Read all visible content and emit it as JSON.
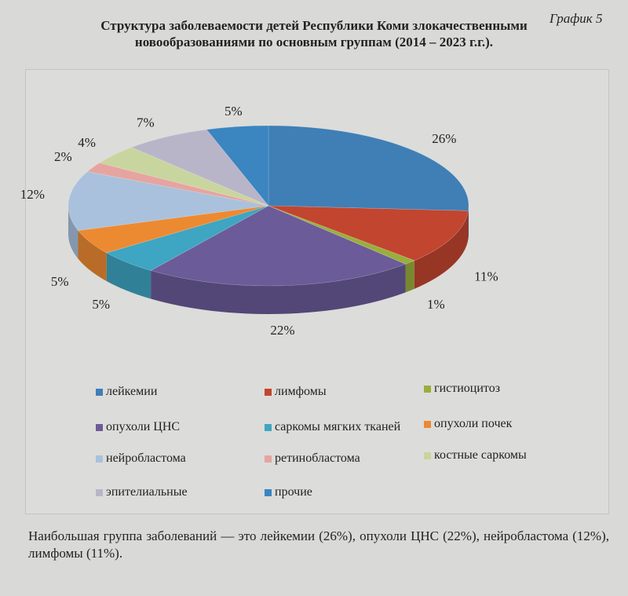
{
  "graph_number": "График 5",
  "chart_data": {
    "type": "pie",
    "title": "Структура заболеваемости детей Республики Коми злокачественными новообразованиями по основным группам (2014 – 2023 г.г.).",
    "unit": "%",
    "style": "3d",
    "legend_position": "bottom",
    "slices": [
      {
        "name": "лейкемии",
        "value": 26,
        "label": "26%",
        "color": "#3f7fb6"
      },
      {
        "name": "лимфомы",
        "value": 11,
        "label": "11%",
        "color": "#c2452f"
      },
      {
        "name": "гистиоцитоз",
        "value": 1,
        "label": "1%",
        "color": "#9aae3c"
      },
      {
        "name": "опухоли ЦНС",
        "value": 22,
        "label": "22%",
        "color": "#6b5b98"
      },
      {
        "name": "саркомы мягких тканей",
        "value": 5,
        "label": "5%",
        "color": "#3ea5c2"
      },
      {
        "name": "опухоли почек",
        "value": 5,
        "label": "5%",
        "color": "#ec8a32"
      },
      {
        "name": "нейробластома",
        "value": 12,
        "label": "12%",
        "color": "#a9c1dc"
      },
      {
        "name": "ретинобластома",
        "value": 2,
        "label": "2%",
        "color": "#e6a4a0"
      },
      {
        "name": "костные саркомы",
        "value": 4,
        "label": "4%",
        "color": "#c9d59e"
      },
      {
        "name": "эпителиальные",
        "value": 7,
        "label": "7%",
        "color": "#b9b5c9"
      },
      {
        "name": "прочие",
        "value": 5,
        "label": "5%",
        "color": "#3b85c0"
      }
    ]
  },
  "note": "Наибольшая группа заболеваний — это лейкемии (26%), опухоли ЦНС (22%), нейробластома (12%), лимфомы (11%)."
}
